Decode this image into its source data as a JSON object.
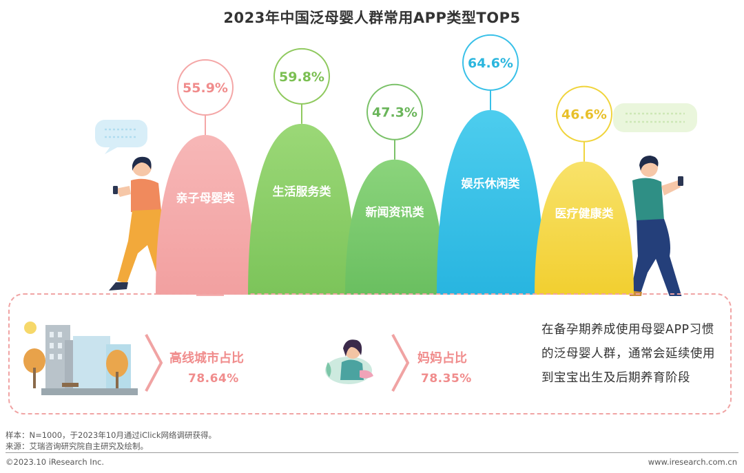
{
  "chart_data": {
    "type": "bar",
    "title": "2023年中国泛母婴人群常用APP类型TOP5",
    "categories": [
      "亲子母婴类",
      "生活服务类",
      "新闻资讯类",
      "娱乐休闲类",
      "医疗健康类"
    ],
    "values": [
      55.9,
      59.8,
      47.3,
      64.6,
      46.6
    ],
    "value_labels": [
      "55.9%",
      "59.8%",
      "47.3%",
      "64.6%",
      "46.6%"
    ],
    "unit": "%",
    "colors": [
      "#f4a6a6",
      "#8fd16a",
      "#78cc6e",
      "#3ac2e6",
      "#f5d94a"
    ],
    "circle_colors": [
      "#f4a6a6",
      "#8fc95e",
      "#7ac168",
      "#38c0e8",
      "#f0d43c"
    ],
    "label_colors": [
      "#f08c8c",
      "#7bbf52",
      "#6ab55a",
      "#2bb6de",
      "#e8c02a"
    ],
    "legend": "none",
    "grid": false
  },
  "stats": [
    {
      "label": "高线城市占比",
      "value": "78.64%"
    },
    {
      "label": "妈妈占比",
      "value": "78.35%"
    }
  ],
  "note": "在备孕期养成使用母婴APP习惯的泛母婴人群，通常会延续使用到宝宝出生及后期养育阶段",
  "footnotes": {
    "sample": "样本：N=1000，于2023年10月通过iClick网络调研获得。",
    "source": "来源：艾瑞咨询研究院自主研究及绘制。"
  },
  "footer": {
    "copyright": "©2023.10 iResearch Inc.",
    "website": "www.iresearch.com.cn"
  }
}
